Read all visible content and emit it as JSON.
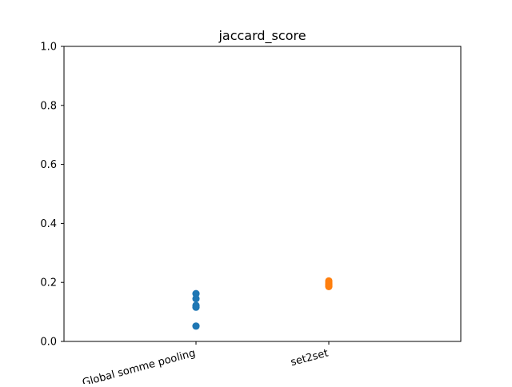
{
  "chart_data": {
    "type": "scatter",
    "title": "jaccard_score",
    "xlabel": "",
    "ylabel": "",
    "categories": [
      "Global somme pooling",
      "set2set"
    ],
    "ylim": [
      0.0,
      1.0
    ],
    "yticks": [
      "0.0",
      "0.2",
      "0.4",
      "0.6",
      "0.8",
      "1.0"
    ],
    "grid": false,
    "legend": "none",
    "series": [
      {
        "category": "Global somme pooling",
        "color": "#1f77b4",
        "values": [
          0.162,
          0.145,
          0.122,
          0.116,
          0.052
        ]
      },
      {
        "category": "set2set",
        "color": "#ff7f0e",
        "values": [
          0.205,
          0.198,
          0.193,
          0.189,
          0.186
        ]
      }
    ]
  }
}
